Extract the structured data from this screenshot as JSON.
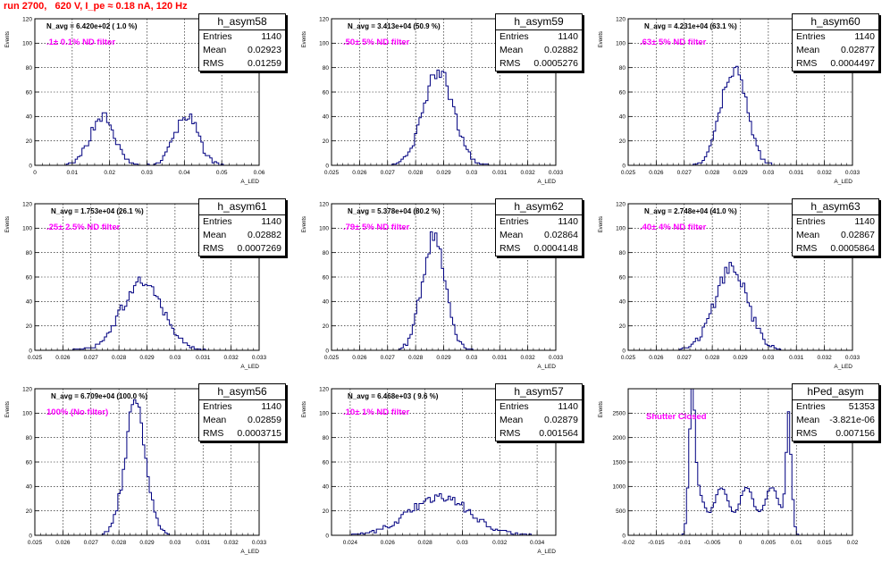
{
  "title": "run 2700,   620 V, I_pe ≈ 0.18 nA, 120 Hz",
  "colors": {
    "hist_line": "#000080",
    "title": "#ff0000",
    "annotation": "#ff00ff"
  },
  "stat_labels": {
    "entries": "Entries",
    "mean": "Mean",
    "rms": "RMS"
  },
  "y_label": "Events",
  "chart_data": [
    {
      "type": "histogram",
      "name": "h_asym58",
      "n_avg": "N_avg = 6.420e+02 ( 1.0 %)",
      "filter": ".1± 0.1% ND filter",
      "stats": {
        "entries": "1140",
        "mean": "0.02923",
        "rms": "0.01259"
      },
      "xlabel": "A_LED",
      "ylabel": "Events",
      "xlim": [
        0,
        0.06
      ],
      "ylim": [
        0,
        120
      ],
      "xticks": [
        0,
        0.01,
        0.02,
        0.03,
        0.04,
        0.05,
        0.06
      ],
      "xtick_labels": [
        "0",
        "0.01",
        "0.02",
        "0.03",
        "0.04",
        "0.05",
        "0.06"
      ],
      "yticks": [
        0,
        20,
        40,
        60,
        80,
        100,
        120
      ],
      "peaks": [
        [
          0.018,
          0.0032,
          40
        ],
        [
          0.0405,
          0.0032,
          40
        ]
      ],
      "nbins": 100
    },
    {
      "type": "histogram",
      "name": "h_asym59",
      "n_avg": "N_avg = 3.413e+04 (50.9 %)",
      "filter": ".50± 5% ND filter",
      "stats": {
        "entries": "1140",
        "mean": "0.02882",
        "rms": "0.0005276"
      },
      "xlabel": "A_LED",
      "ylabel": "Events",
      "xlim": [
        0.025,
        0.033
      ],
      "ylim": [
        0,
        120
      ],
      "xticks": [
        0.025,
        0.026,
        0.027,
        0.028,
        0.029,
        0.03,
        0.031,
        0.032,
        0.033
      ],
      "xtick_labels": [
        "0.025",
        "0.026",
        "0.027",
        "0.028",
        "0.029",
        "0.03",
        "0.031",
        "0.032",
        "0.033"
      ],
      "yticks": [
        0,
        20,
        40,
        60,
        80,
        100,
        120
      ],
      "peaks": [
        [
          0.02882,
          0.00053,
          78
        ]
      ],
      "nbins": 100
    },
    {
      "type": "histogram",
      "name": "h_asym60",
      "n_avg": "N_avg = 4.231e+04 (63.1 %)",
      "filter": ".63± 5% ND filter",
      "stats": {
        "entries": "1140",
        "mean": "0.02877",
        "rms": "0.0004497"
      },
      "xlabel": "A_LED",
      "ylabel": "Events",
      "xlim": [
        0.025,
        0.033
      ],
      "ylim": [
        0,
        120
      ],
      "xticks": [
        0.025,
        0.026,
        0.027,
        0.028,
        0.029,
        0.03,
        0.031,
        0.032,
        0.033
      ],
      "xtick_labels": [
        "0.025",
        "0.026",
        "0.027",
        "0.028",
        "0.029",
        "0.03",
        "0.031",
        "0.032",
        "0.033"
      ],
      "yticks": [
        0,
        20,
        40,
        60,
        80,
        100,
        120
      ],
      "peaks": [
        [
          0.02877,
          0.00045,
          80
        ]
      ],
      "nbins": 100
    },
    {
      "type": "histogram",
      "name": "h_asym61",
      "n_avg": "N_avg = 1.753e+04 (26.1 %)",
      "filter": ".25± 2.5% ND filter",
      "stats": {
        "entries": "1140",
        "mean": "0.02882",
        "rms": "0.0007269"
      },
      "xlabel": "A_LED",
      "ylabel": "Events",
      "xlim": [
        0.025,
        0.033
      ],
      "ylim": [
        0,
        120
      ],
      "xticks": [
        0.025,
        0.026,
        0.027,
        0.028,
        0.029,
        0.03,
        0.031,
        0.032,
        0.033
      ],
      "xtick_labels": [
        "0.025",
        "0.026",
        "0.027",
        "0.028",
        "0.029",
        "0.03",
        "0.031",
        "0.032",
        "0.033"
      ],
      "yticks": [
        0,
        20,
        40,
        60,
        80,
        100,
        120
      ],
      "peaks": [
        [
          0.02882,
          0.00073,
          55
        ]
      ],
      "nbins": 100
    },
    {
      "type": "histogram",
      "name": "h_asym62",
      "n_avg": "N_avg = 5.378e+04 (80.2 %)",
      "filter": ".79± 5% ND filter",
      "stats": {
        "entries": "1140",
        "mean": "0.02864",
        "rms": "0.0004148"
      },
      "xlabel": "A_LED",
      "ylabel": "Events",
      "xlim": [
        0.025,
        0.033
      ],
      "ylim": [
        0,
        120
      ],
      "xticks": [
        0.025,
        0.026,
        0.027,
        0.028,
        0.029,
        0.03,
        0.031,
        0.032,
        0.033
      ],
      "xtick_labels": [
        "0.025",
        "0.026",
        "0.027",
        "0.028",
        "0.029",
        "0.03",
        "0.031",
        "0.032",
        "0.033"
      ],
      "yticks": [
        0,
        20,
        40,
        60,
        80,
        100,
        120
      ],
      "peaks": [
        [
          0.02864,
          0.00041,
          92
        ]
      ],
      "nbins": 100
    },
    {
      "type": "histogram",
      "name": "h_asym63",
      "n_avg": "N_avg = 2.748e+04 (41.0 %)",
      "filter": ".40± 4% ND filter",
      "stats": {
        "entries": "1140",
        "mean": "0.02867",
        "rms": "0.0005864"
      },
      "xlabel": "A_LED",
      "ylabel": "Events",
      "xlim": [
        0.025,
        0.033
      ],
      "ylim": [
        0,
        120
      ],
      "xticks": [
        0.025,
        0.026,
        0.027,
        0.028,
        0.029,
        0.03,
        0.031,
        0.032,
        0.033
      ],
      "xtick_labels": [
        "0.025",
        "0.026",
        "0.027",
        "0.028",
        "0.029",
        "0.03",
        "0.031",
        "0.032",
        "0.033"
      ],
      "yticks": [
        0,
        20,
        40,
        60,
        80,
        100,
        120
      ],
      "peaks": [
        [
          0.02867,
          0.00059,
          66
        ]
      ],
      "nbins": 100
    },
    {
      "type": "histogram",
      "name": "h_asym56",
      "n_avg": "N_avg = 6.709e+04 (100.0 %)",
      "filter": "100% (No filter)",
      "stats": {
        "entries": "1140",
        "mean": "0.02859",
        "rms": "0.0003715"
      },
      "xlabel": "A_LED",
      "ylabel": "Events",
      "xlim": [
        0.025,
        0.033
      ],
      "ylim": [
        0,
        120
      ],
      "xticks": [
        0.025,
        0.026,
        0.027,
        0.028,
        0.029,
        0.03,
        0.031,
        0.032,
        0.033
      ],
      "xtick_labels": [
        "0.025",
        "0.026",
        "0.027",
        "0.028",
        "0.029",
        "0.03",
        "0.031",
        "0.032",
        "0.033"
      ],
      "yticks": [
        0,
        20,
        40,
        60,
        80,
        100,
        120
      ],
      "peaks": [
        [
          0.02859,
          0.00037,
          108
        ]
      ],
      "nbins": 100
    },
    {
      "type": "histogram",
      "name": "h_asym57",
      "n_avg": "N_avg = 6.468e+03 ( 9.6 %)",
      "filter": ".10± 1% ND filter",
      "stats": {
        "entries": "1140",
        "mean": "0.02879",
        "rms": "0.001564"
      },
      "xlabel": "A_LED",
      "ylabel": "Events",
      "xlim": [
        0.023,
        0.035
      ],
      "ylim": [
        0,
        120
      ],
      "xticks": [
        0.024,
        0.026,
        0.028,
        0.03,
        0.032,
        0.034
      ],
      "xtick_labels": [
        "0.024",
        "0.026",
        "0.028",
        "0.03",
        "0.032",
        "0.034"
      ],
      "yticks": [
        0,
        20,
        40,
        60,
        80,
        100,
        120
      ],
      "peaks": [
        [
          0.02879,
          0.0016,
          32
        ]
      ],
      "nbins": 100
    },
    {
      "type": "histogram",
      "name": "hPed_asym",
      "n_avg": "",
      "filter": "Shutter Closed",
      "stats": {
        "entries": "51353",
        "mean": "-3.821e-06",
        "rms": "0.007156"
      },
      "xlabel": "",
      "ylabel": "Events",
      "xlim": [
        -0.02,
        0.02
      ],
      "ylim": [
        0,
        3000
      ],
      "xticks": [
        -0.02,
        -0.015,
        -0.01,
        -0.005,
        0,
        0.005,
        0.01,
        0.015,
        0.02
      ],
      "xtick_labels": [
        "-0.02",
        "-0.015",
        "-0.01",
        "-0.005",
        "0",
        "0.005",
        "0.01",
        "0.015",
        "0.02"
      ],
      "yticks": [
        0,
        500,
        1000,
        1500,
        2000,
        2500
      ],
      "peaks": [
        [
          -0.0087,
          0.0005,
          2600
        ],
        [
          0.0087,
          0.0005,
          2000
        ]
      ],
      "base": 850,
      "nbins": 100
    }
  ]
}
